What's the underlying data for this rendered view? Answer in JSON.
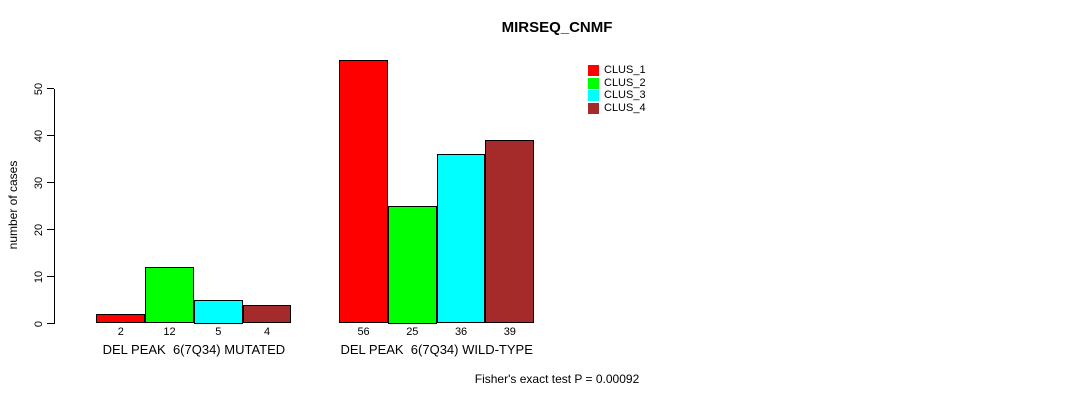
{
  "chart_data": {
    "type": "bar",
    "title": "MIRSEQ_CNMF",
    "ylabel": "number of cases",
    "xlabel": "",
    "ylim": [
      0,
      56
    ],
    "yticks": [
      0,
      10,
      20,
      30,
      40,
      50
    ],
    "grid": false,
    "legend_position": "top-right-inside",
    "categories": [
      "DEL PEAK  6(7Q34) MUTATED",
      "DEL PEAK  6(7Q34) WILD-TYPE"
    ],
    "series": [
      {
        "name": "CLUS_1",
        "color": "#ff0000",
        "values": [
          2,
          56
        ]
      },
      {
        "name": "CLUS_2",
        "color": "#00ff00",
        "values": [
          12,
          25
        ]
      },
      {
        "name": "CLUS_3",
        "color": "#00ffff",
        "values": [
          5,
          36
        ]
      },
      {
        "name": "CLUS_4",
        "color": "#a52a2a",
        "values": [
          4,
          39
        ]
      }
    ],
    "annotation": "Fisher's exact test P = 0.00092"
  },
  "colors": {
    "background": "#ffffff",
    "axis": "#000000",
    "bar_border": "#000000",
    "text": "#000000"
  }
}
